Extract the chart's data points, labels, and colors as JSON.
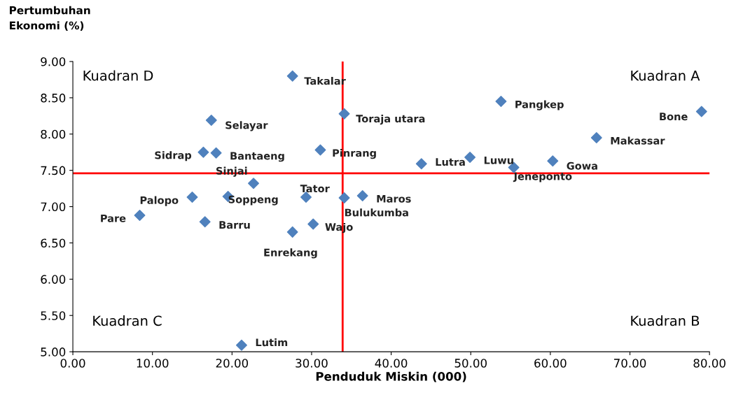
{
  "chart_data": {
    "type": "scatter",
    "xlabel": "Penduduk Miskin (000)",
    "ylabel": "Pertumbuhan\nEkonomi (%)",
    "x": [
      27.6,
      34.1,
      53.8,
      79.0,
      17.4,
      65.8,
      16.4,
      18.0,
      31.1,
      49.9,
      60.3,
      43.8,
      55.4,
      22.7,
      15.0,
      19.5,
      29.3,
      34.1,
      36.4,
      8.4,
      16.6,
      30.2,
      27.6,
      21.2
    ],
    "series": [
      {
        "color": "#4f81bd",
        "values": [
          8.8,
          8.28,
          8.45,
          8.31,
          8.19,
          7.95,
          7.75,
          7.74,
          7.78,
          7.68,
          7.63,
          7.59,
          7.54,
          7.32,
          7.13,
          7.14,
          7.13,
          7.12,
          7.15,
          6.88,
          6.79,
          6.76,
          6.65,
          5.09
        ]
      }
    ],
    "marker": "diamond",
    "grid": false,
    "xlim": [
      0,
      80
    ],
    "ylim": [
      5,
      9
    ],
    "xticks": [
      {
        "value": 0,
        "label": "0.00"
      },
      {
        "value": 10,
        "label": "10.00"
      },
      {
        "value": 20,
        "label": "20.00"
      },
      {
        "value": 30,
        "label": "30.00"
      },
      {
        "value": 40,
        "label": "40.00"
      },
      {
        "value": 50,
        "label": "50.00"
      },
      {
        "value": 60,
        "label": "60.00"
      },
      {
        "value": 70,
        "label": "70.00"
      },
      {
        "value": 80,
        "label": "80.00"
      }
    ],
    "yticks": [
      {
        "value": 5,
        "label": "5.00"
      },
      {
        "value": 5.5,
        "label": "5.50"
      },
      {
        "value": 6,
        "label": "6.00"
      },
      {
        "value": 6.5,
        "label": "6.50"
      },
      {
        "value": 7,
        "label": "7.00"
      },
      {
        "value": 7.5,
        "label": "7.50"
      },
      {
        "value": 8,
        "label": "8.00"
      },
      {
        "value": 8.5,
        "label": "8.50"
      },
      {
        "value": 9,
        "label": "9.00"
      }
    ],
    "ref_lines": [
      {
        "axis": "x",
        "value": 33.9,
        "color": "#ff0000"
      },
      {
        "axis": "y",
        "value": 7.46,
        "color": "#ff0000"
      }
    ],
    "annotations": [
      {
        "text": "Takalar",
        "x": 27.6,
        "y": 8.8
      },
      {
        "text": "Toraja utara",
        "x": 34.1,
        "y": 8.28
      },
      {
        "text": "Pangkep",
        "x": 53.8,
        "y": 8.45
      },
      {
        "text": "Bone",
        "x": 79.0,
        "y": 8.31
      },
      {
        "text": "Selayar",
        "x": 17.4,
        "y": 8.19
      },
      {
        "text": "Makassar",
        "x": 65.8,
        "y": 7.95
      },
      {
        "text": "Sidrap",
        "x": 16.4,
        "y": 7.75
      },
      {
        "text": "Bantaeng",
        "x": 18.0,
        "y": 7.74
      },
      {
        "text": "Pinrang",
        "x": 31.1,
        "y": 7.78
      },
      {
        "text": "Luwu",
        "x": 49.9,
        "y": 7.68
      },
      {
        "text": "Gowa",
        "x": 60.3,
        "y": 7.63
      },
      {
        "text": "Lutra",
        "x": 43.8,
        "y": 7.59
      },
      {
        "text": "Jeneponto",
        "x": 55.4,
        "y": 7.54
      },
      {
        "text": "Sinjai",
        "x": 22.7,
        "y": 7.32
      },
      {
        "text": "Palopo",
        "x": 15.0,
        "y": 7.13
      },
      {
        "text": "Soppeng",
        "x": 19.5,
        "y": 7.14
      },
      {
        "text": "Tator",
        "x": 29.3,
        "y": 7.13
      },
      {
        "text": "Bulukumba",
        "x": 34.1,
        "y": 7.12
      },
      {
        "text": "Maros",
        "x": 36.4,
        "y": 7.15
      },
      {
        "text": "Pare",
        "x": 8.4,
        "y": 6.88
      },
      {
        "text": "Barru",
        "x": 16.6,
        "y": 6.79
      },
      {
        "text": "Wajo",
        "x": 30.2,
        "y": 6.76
      },
      {
        "text": "Enrekang",
        "x": 27.6,
        "y": 6.65
      },
      {
        "text": "Lutim",
        "x": 21.2,
        "y": 5.09
      },
      "Kuadran D",
      "Kuadran A",
      "Kuadran C",
      "Kuadran B"
    ]
  }
}
